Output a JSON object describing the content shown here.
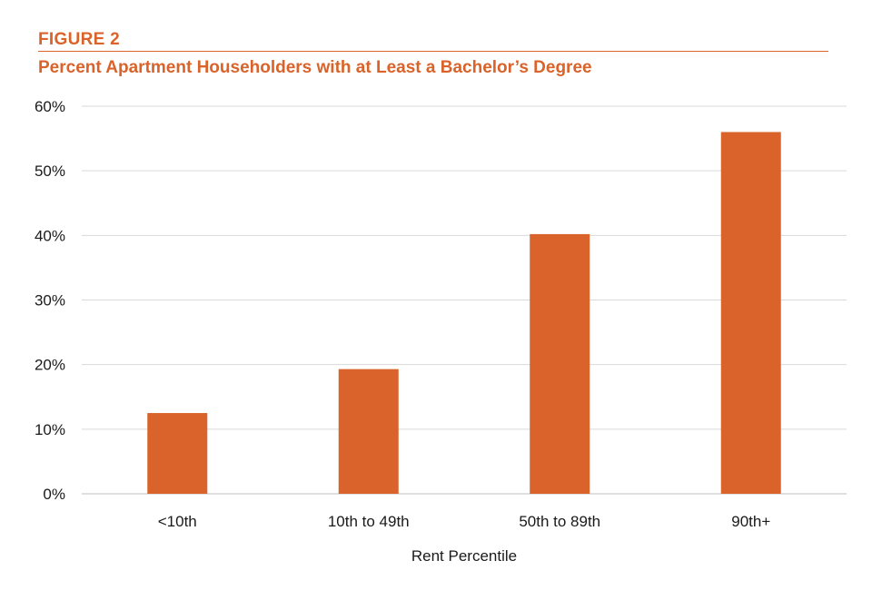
{
  "header": {
    "figure_label": "FIGURE 2",
    "title": "Percent Apartment Householders with at Least a Bachelor’s Degree"
  },
  "colors": {
    "accent": "#d9632a",
    "bar": "#d9632a",
    "grid": "#d9d9d9",
    "text": "#1a1a1a"
  },
  "chart_data": {
    "type": "bar",
    "title": "Percent Apartment Householders with at Least a Bachelor’s Degree",
    "categories": [
      "<10th",
      "10th to 49th",
      "50th to 89th",
      "90th+"
    ],
    "values": [
      12.5,
      19.3,
      40.2,
      56.0
    ],
    "xlabel": "Rent Percentile",
    "ylabel": "",
    "ylim": [
      0,
      60
    ],
    "yticks": [
      0,
      10,
      20,
      30,
      40,
      50,
      60
    ],
    "ytick_labels": [
      "0%",
      "10%",
      "20%",
      "30%",
      "40%",
      "50%",
      "60%"
    ],
    "grid": true,
    "legend": false
  }
}
